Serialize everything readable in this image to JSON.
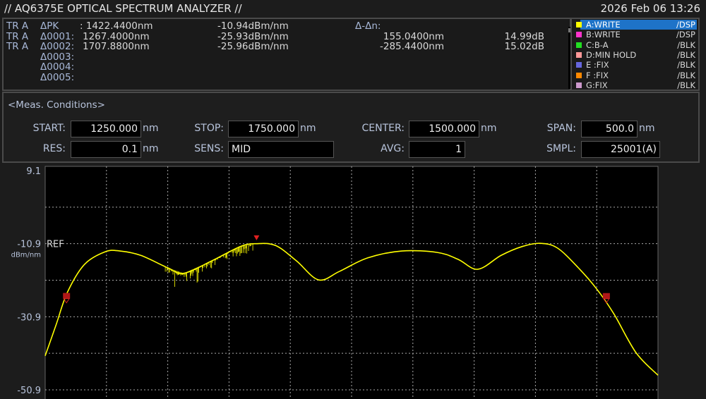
{
  "header": {
    "title": "// AQ6375E OPTICAL SPECTRUM ANALYZER //",
    "datetime": "2026 Feb 06 13:26"
  },
  "markers": {
    "rows": [
      {
        "trace": "TR A",
        "name": "ΔPK",
        "wl": ": 1422.4400nm",
        "level": "-10.94dBm/nm"
      },
      {
        "trace": "TR A",
        "name": "Δ0001:",
        "wl": "1267.4000nm",
        "level": "-25.93dBm/nm"
      },
      {
        "trace": "TR A",
        "name": "Δ0002:",
        "wl": "1707.8800nm",
        "level": "-25.96dBm/nm"
      },
      {
        "trace": "",
        "name": "Δ0003:",
        "wl": "",
        "level": ""
      },
      {
        "trace": "",
        "name": "Δ0004:",
        "wl": "",
        "level": ""
      },
      {
        "trace": "",
        "name": "Δ0005:",
        "wl": "",
        "level": ""
      }
    ],
    "delta_title": "Δ-Δn:",
    "deltas": [
      {
        "wl": "155.0400nm",
        "db": "14.99dB"
      },
      {
        "wl": "-285.4400nm",
        "db": "15.02dB"
      }
    ]
  },
  "traces": [
    {
      "name": "A:WRITE",
      "status": "/DSP",
      "color": "#ffff00",
      "selected": true
    },
    {
      "name": "B:WRITE",
      "status": "/DSP",
      "color": "#ff33cc"
    },
    {
      "name": "C:B-A",
      "status": "/BLK",
      "color": "#22dd22"
    },
    {
      "name": "D:MIN HOLD",
      "status": "/BLK",
      "color": "#ff9999"
    },
    {
      "name": "E :FIX",
      "status": "/BLK",
      "color": "#6666dd"
    },
    {
      "name": "F :FIX",
      "status": "/BLK",
      "color": "#ff8800"
    },
    {
      "name": "G:FIX",
      "status": "/BLK",
      "color": "#cc99cc"
    }
  ],
  "conditions": {
    "title": "<Meas. Conditions>",
    "start": {
      "label": "START:",
      "value": "1250.000",
      "unit": "nm"
    },
    "stop": {
      "label": "STOP:",
      "value": "1750.000",
      "unit": "nm"
    },
    "center": {
      "label": "CENTER:",
      "value": "1500.000",
      "unit": "nm"
    },
    "span": {
      "label": "SPAN:",
      "value": "500.0",
      "unit": "nm"
    },
    "res": {
      "label": "RES:",
      "value": "0.1",
      "unit": "nm"
    },
    "sens": {
      "label": "SENS:",
      "value": "MID"
    },
    "avg": {
      "label": "AVG:",
      "value": "1"
    },
    "smpl": {
      "label": "SMPL:",
      "value": "25001(A)"
    }
  },
  "chart_data": {
    "type": "line",
    "xlim": [
      1250,
      1750
    ],
    "ylim": [
      -50.9,
      9.1
    ],
    "y_ticks": [
      "9.1",
      "-10.9",
      "-30.9",
      "-50.9"
    ],
    "ref_label": "REF",
    "y_unit": "dBm/nm",
    "grid": true,
    "x_divisions": 10,
    "y_divisions": 6,
    "trace_color": "#ffff00",
    "series": [
      {
        "x": [
          1250,
          1259,
          1268,
          1282,
          1299,
          1311,
          1328,
          1350,
          1363,
          1386,
          1409,
          1422,
          1438,
          1455,
          1473,
          1490,
          1513,
          1541,
          1570,
          1587,
          1603,
          1622,
          1639,
          1654,
          1668,
          1685,
          1700,
          1714,
          1732,
          1750
        ],
        "y": [
          -41.6,
          -33,
          -24.3,
          -16.6,
          -13.1,
          -12.9,
          -14.1,
          -17.5,
          -19,
          -15.6,
          -11.7,
          -10.9,
          -11.4,
          -15.6,
          -20.8,
          -18.5,
          -14.8,
          -12.9,
          -13.3,
          -15.2,
          -17.9,
          -14.1,
          -11.7,
          -10.8,
          -12.1,
          -17.5,
          -23.3,
          -30.1,
          -40.7,
          -46.9
        ]
      }
    ],
    "markers": [
      {
        "type": "peak",
        "x": 1422.44,
        "y": -10.94
      },
      {
        "type": "1",
        "x": 1267.4,
        "y": -25.93
      },
      {
        "type": "2",
        "x": 1707.88,
        "y": -25.96
      }
    ]
  }
}
